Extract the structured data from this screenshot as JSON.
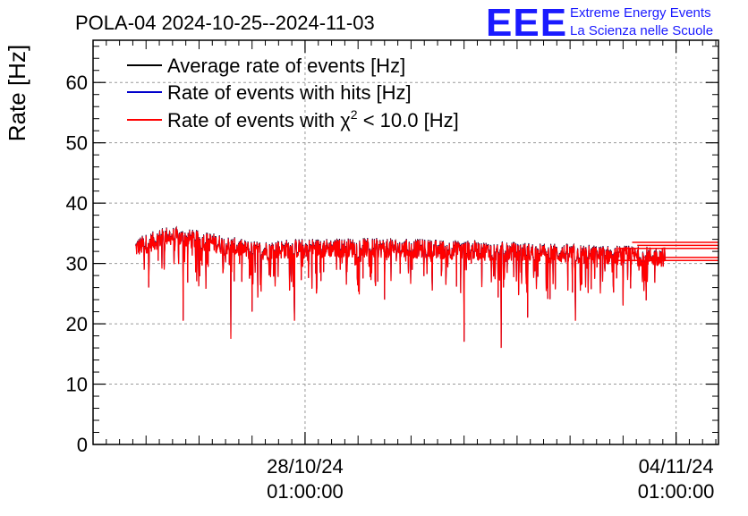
{
  "chart_data": {
    "type": "line",
    "title": "POLA-04 2024-10-25--2024-11-03",
    "ylabel": "Rate [Hz]",
    "xlabel": "",
    "ylim": [
      0,
      67
    ],
    "grid": true,
    "legend_position": "top-left",
    "y_ticks": [
      "0",
      "10",
      "20",
      "30",
      "40",
      "50",
      "60"
    ],
    "x_ticks": [
      {
        "date": "28/10/24",
        "time": "01:00:00",
        "day": 3.0
      },
      {
        "date": "04/11/24",
        "time": "01:00:00",
        "day": 10.0
      }
    ],
    "xlim_days": [
      -1.0,
      10.8
    ],
    "series": [
      {
        "name": "Average rate of events [Hz]",
        "color": "#000000",
        "typical_value": 32.5
      },
      {
        "name": "Rate of events with hits [Hz]",
        "color": "#0000cc",
        "typical_value": 32.5
      },
      {
        "name": "Rate of events with χ² < 10.0 [Hz]",
        "color": "#ff0000",
        "typical_value": 32.5
      }
    ],
    "red_series_profile": {
      "start_day": -0.2,
      "end_day": 9.8,
      "baseline_points": [
        [
          -0.2,
          32.5
        ],
        [
          0.4,
          34.5
        ],
        [
          1.2,
          33.5
        ],
        [
          2.0,
          32.0
        ],
        [
          3.0,
          32.5
        ],
        [
          4.5,
          32.5
        ],
        [
          6.5,
          32.0
        ],
        [
          8.0,
          31.5
        ],
        [
          9.8,
          31.0
        ]
      ],
      "dips": [
        [
          0.05,
          26
        ],
        [
          0.7,
          20.5
        ],
        [
          1.6,
          17.5
        ],
        [
          2.0,
          22
        ],
        [
          2.8,
          20.5
        ],
        [
          4.5,
          24
        ],
        [
          6.0,
          17
        ],
        [
          6.7,
          16
        ],
        [
          7.2,
          21
        ],
        [
          8.1,
          20.5
        ],
        [
          9.0,
          23
        ]
      ],
      "tail_lines": [
        33.5,
        33.0,
        32.5,
        31.0,
        30.5
      ]
    }
  },
  "logo": {
    "mark": "EEE",
    "line1": "Extreme Energy Events",
    "line2": "La Scienza nelle Scuole"
  },
  "legend_parts": {
    "chi_prefix": "Rate of events with ",
    "chi_symbol": "χ",
    "chi_power": "2",
    "chi_suffix": " < 10.0 [Hz]"
  }
}
